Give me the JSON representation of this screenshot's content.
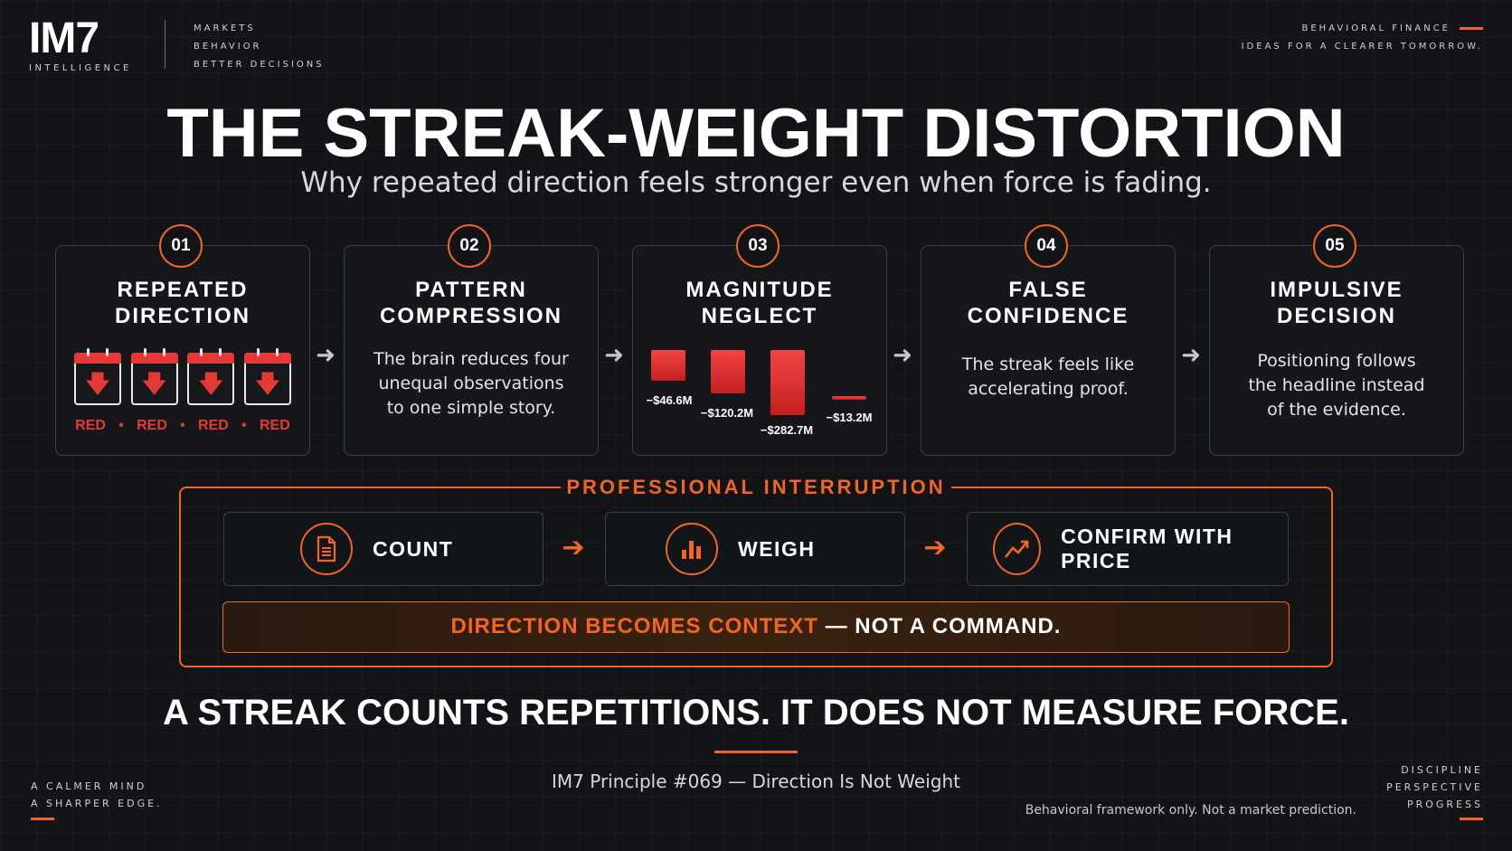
{
  "brand": {
    "logo": "IM7",
    "logo_sub": "INTELLIGENCE",
    "tagline": [
      "MARKETS",
      "BEHAVIOR",
      "BETTER DECISIONS"
    ]
  },
  "top_right": [
    "BEHAVIORAL FINANCE",
    "IDEAS FOR A CLEARER TOMORROW."
  ],
  "title": "THE STREAK-WEIGHT DISTORTION",
  "subtitle": "Why repeated direction feels stronger even when force is fading.",
  "steps": [
    {
      "num": "01",
      "title": "REPEATED\nDIRECTION",
      "labels": [
        "RED",
        "RED",
        "RED",
        "RED"
      ]
    },
    {
      "num": "02",
      "title": "PATTERN\nCOMPRESSION",
      "body": "The brain reduces four\nunequal observations\nto one simple story."
    },
    {
      "num": "03",
      "title": "MAGNITUDE\nNEGLECT",
      "bars": [
        "−$46.6M",
        "−$120.2M",
        "−$282.7M",
        "−$13.2M"
      ]
    },
    {
      "num": "04",
      "title": "FALSE\nCONFIDENCE",
      "body": "The streak feels like\naccelerating proof."
    },
    {
      "num": "05",
      "title": "IMPULSIVE\nDECISION",
      "body": "Positioning follows\nthe headline instead\nof the evidence."
    }
  ],
  "interruption": {
    "label": "PROFESSIONAL INTERRUPTION",
    "actions": [
      {
        "label": "COUNT",
        "icon": "document-icon"
      },
      {
        "label": "WEIGH",
        "icon": "bar-chart-icon"
      },
      {
        "label": "CONFIRM WITH PRICE",
        "icon": "trend-up-icon"
      }
    ],
    "context_orange": "DIRECTION BECOMES CONTEXT",
    "context_white": " — NOT A COMMAND."
  },
  "bottom_statement": "A STREAK COUNTS REPETITIONS. IT DOES NOT MEASURE FORCE.",
  "principle": "IM7 Principle #069 — Direction Is Not Weight",
  "disclaimer": "Behavioral framework only. Not a market prediction.",
  "bottom_left": [
    "A CALMER MIND",
    "A SHARPER EDGE."
  ],
  "bottom_right": [
    "DISCIPLINE",
    "PERSPECTIVE",
    "PROGRESS"
  ],
  "colors": {
    "accent": "#f26522",
    "negative": "#e53935",
    "background": "#121417"
  }
}
